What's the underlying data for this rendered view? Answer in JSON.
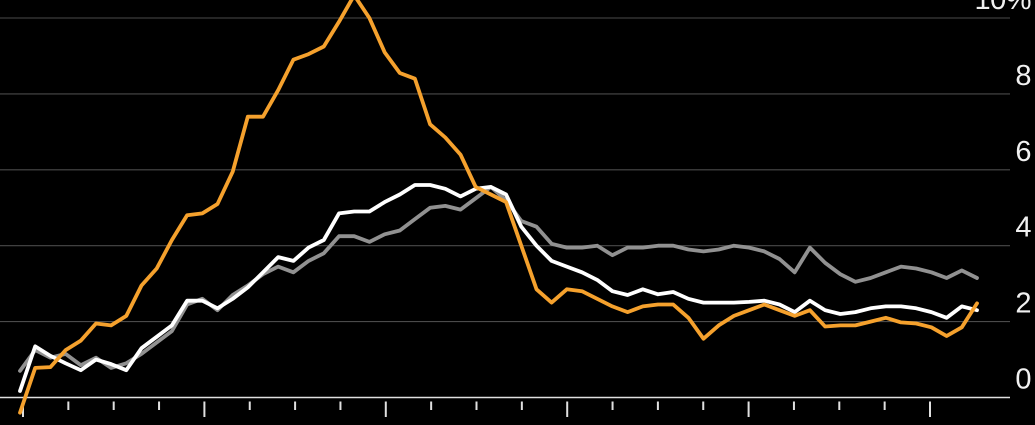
{
  "window": {
    "background": "#000000",
    "description": "Line chart with black background, three series, right-side percent axis"
  },
  "colors": {
    "background": "#000000",
    "gridline": "#4a4a4a",
    "axis_line": "#e0e0e0",
    "tick": "#e0e0e0",
    "label": "#f0f0f0",
    "series_orange": "#F5A12D",
    "series_white": "#FFFFFF",
    "series_gray": "#919191"
  },
  "chart_data": {
    "type": "line",
    "title": "",
    "xlabel": "",
    "ylabel": "",
    "grid": "horizontal-only",
    "legend": "none",
    "ylim": [
      -0.72,
      10.47
    ],
    "y_axis": {
      "side": "right",
      "unit_suffix_on_top_tick": "%",
      "ticks": [
        {
          "label": "10%",
          "value": 10
        },
        {
          "label": "8",
          "value": 8
        },
        {
          "label": "6",
          "value": 6
        },
        {
          "label": "4",
          "value": 4
        },
        {
          "label": "2",
          "value": 2
        },
        {
          "label": "0",
          "value": 0
        }
      ]
    },
    "x_axis": {
      "labels_visible": false,
      "minor_tick_count": 21,
      "major_tick_every": 4
    },
    "series": [
      {
        "name": "gray",
        "color": "#919191",
        "values": [
          0.7,
          1.25,
          1.05,
          1.15,
          0.85,
          1.05,
          0.78,
          0.9,
          1.15,
          1.45,
          1.75,
          2.45,
          2.6,
          2.3,
          2.7,
          2.95,
          3.25,
          3.45,
          3.3,
          3.6,
          3.8,
          4.25,
          4.25,
          4.1,
          4.3,
          4.4,
          4.7,
          5.0,
          5.05,
          4.95,
          5.25,
          5.55,
          5.2,
          4.65,
          4.5,
          4.05,
          3.95,
          3.95,
          4.0,
          3.75,
          3.95,
          3.95,
          4.0,
          4.0,
          3.9,
          3.85,
          3.9,
          4.0,
          3.95,
          3.85,
          3.65,
          3.3,
          3.95,
          3.55,
          3.25,
          3.05,
          3.15,
          3.3,
          3.45,
          3.4,
          3.3,
          3.15,
          3.35,
          3.15
        ]
      },
      {
        "name": "white",
        "color": "#FFFFFF",
        "values": [
          0.17,
          1.35,
          1.1,
          0.9,
          0.72,
          1.0,
          0.88,
          0.72,
          1.3,
          1.6,
          1.9,
          2.55,
          2.55,
          2.35,
          2.6,
          2.9,
          3.3,
          3.7,
          3.6,
          3.95,
          4.15,
          4.85,
          4.9,
          4.9,
          5.15,
          5.35,
          5.6,
          5.6,
          5.5,
          5.3,
          5.5,
          5.55,
          5.35,
          4.5,
          4.0,
          3.6,
          3.45,
          3.3,
          3.1,
          2.8,
          2.7,
          2.85,
          2.72,
          2.78,
          2.6,
          2.5,
          2.5,
          2.5,
          2.52,
          2.55,
          2.45,
          2.25,
          2.55,
          2.3,
          2.2,
          2.25,
          2.35,
          2.4,
          2.4,
          2.35,
          2.25,
          2.1,
          2.4,
          2.3
        ]
      },
      {
        "name": "orange",
        "color": "#F5A12D",
        "values": [
          -0.4,
          0.78,
          0.8,
          1.25,
          1.5,
          1.95,
          1.9,
          2.15,
          2.95,
          3.4,
          4.15,
          4.8,
          4.85,
          5.1,
          5.95,
          7.4,
          7.4,
          8.1,
          8.9,
          9.05,
          9.25,
          9.9,
          10.6,
          10.0,
          9.1,
          8.55,
          8.4,
          7.2,
          6.85,
          6.4,
          5.55,
          5.35,
          5.15,
          4.0,
          2.85,
          2.5,
          2.85,
          2.8,
          2.6,
          2.4,
          2.25,
          2.4,
          2.45,
          2.45,
          2.1,
          1.55,
          1.9,
          2.15,
          2.3,
          2.45,
          2.3,
          2.15,
          2.3,
          1.87,
          1.9,
          1.9,
          2.0,
          2.1,
          1.98,
          1.95,
          1.85,
          1.62,
          1.85,
          2.48
        ]
      }
    ]
  }
}
